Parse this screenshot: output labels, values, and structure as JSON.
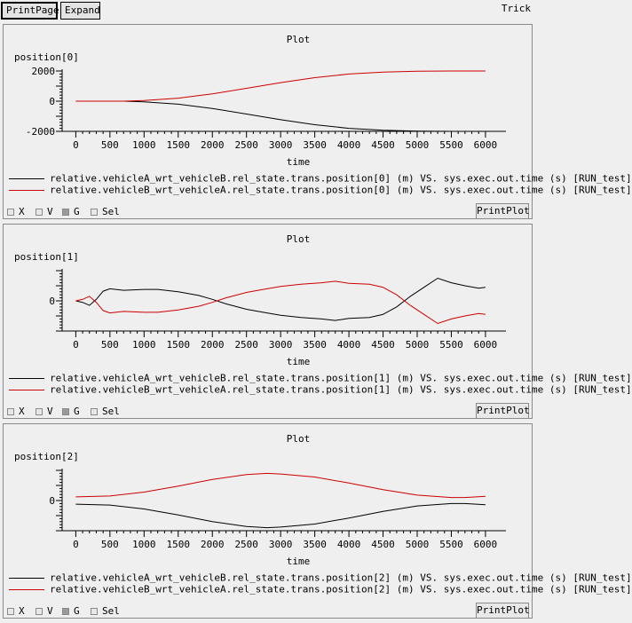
{
  "toolbar": {
    "printpage_label": "PrintPage",
    "expand_label": "Expand",
    "app_label": "Trick"
  },
  "controls": {
    "x_label": "X",
    "v_label": "V",
    "g_label": "G",
    "sel_label": "Sel",
    "printplot_label": "PrintPlot",
    "g_checked": true
  },
  "colors": {
    "series_a": "#000000",
    "series_b": "#cc0000"
  },
  "chart_data": [
    {
      "type": "line",
      "title": "Plot",
      "ylabel": "position[0]",
      "xlabel": "time",
      "xlim": [
        -200,
        6300
      ],
      "ylim": [
        -2000,
        2000
      ],
      "xticks": [
        0,
        500,
        1000,
        1500,
        2000,
        2500,
        3000,
        3500,
        4000,
        4500,
        5000,
        5500,
        6000
      ],
      "yticks": [
        2000,
        0,
        -2000
      ],
      "grid": false,
      "series": [
        {
          "name": "relative.vehicleA_wrt_vehicleB.rel_state.trans.position[0] (m) VS. sys.exec.out.time (s) [RUN_test]",
          "x": [
            0,
            500,
            700,
            1000,
            1500,
            2000,
            2500,
            3000,
            3500,
            4000,
            4500,
            5000,
            5500,
            6000
          ],
          "y": [
            0,
            0,
            0,
            -40,
            -200,
            -480,
            -850,
            -1230,
            -1560,
            -1800,
            -1930,
            -1980,
            -2000,
            -2000
          ]
        },
        {
          "name": "relative.vehicleB_wrt_vehicleA.rel_state.trans.position[0] (m) VS. sys.exec.out.time (s) [RUN_test]",
          "x": [
            0,
            500,
            700,
            1000,
            1500,
            2000,
            2500,
            3000,
            3500,
            4000,
            4500,
            5000,
            5500,
            6000
          ],
          "y": [
            0,
            0,
            0,
            40,
            200,
            480,
            850,
            1230,
            1560,
            1800,
            1930,
            1980,
            2000,
            2000
          ]
        }
      ]
    },
    {
      "type": "line",
      "title": "Plot",
      "ylabel": "position[1]",
      "xlabel": "time",
      "xlim": [
        -200,
        6300
      ],
      "ylim": [
        -1,
        1
      ],
      "xticks": [
        0,
        500,
        1000,
        1500,
        2000,
        2500,
        3000,
        3500,
        4000,
        4500,
        5000,
        5500,
        6000
      ],
      "yticks": [
        0
      ],
      "grid": false,
      "series": [
        {
          "name": "relative.vehicleA_wrt_vehicleB.rel_state.trans.position[1] (m) VS. sys.exec.out.time (s) [RUN_test]",
          "x": [
            0,
            100,
            200,
            300,
            400,
            500,
            700,
            1000,
            1200,
            1500,
            1800,
            2000,
            2200,
            2500,
            2800,
            3000,
            3300,
            3600,
            3800,
            4000,
            4300,
            4500,
            4700,
            4900,
            5100,
            5300,
            5500,
            5700,
            5900,
            6000
          ],
          "y": [
            0,
            -0.05,
            -0.15,
            0.05,
            0.32,
            0.4,
            0.35,
            0.38,
            0.38,
            0.3,
            0.18,
            0.05,
            -0.1,
            -0.28,
            -0.4,
            -0.48,
            -0.55,
            -0.6,
            -0.65,
            -0.58,
            -0.55,
            -0.45,
            -0.2,
            0.15,
            0.45,
            0.75,
            0.6,
            0.5,
            0.42,
            0.45
          ]
        },
        {
          "name": "relative.vehicleB_wrt_vehicleA.rel_state.trans.position[1] (m) VS. sys.exec.out.time (s) [RUN_test]",
          "x": [
            0,
            100,
            200,
            300,
            400,
            500,
            700,
            1000,
            1200,
            1500,
            1800,
            2000,
            2200,
            2500,
            2800,
            3000,
            3300,
            3600,
            3800,
            4000,
            4300,
            4500,
            4700,
            4900,
            5100,
            5300,
            5500,
            5700,
            5900,
            6000
          ],
          "y": [
            0,
            0.05,
            0.15,
            -0.05,
            -0.32,
            -0.4,
            -0.35,
            -0.38,
            -0.38,
            -0.3,
            -0.18,
            -0.05,
            0.1,
            0.28,
            0.4,
            0.48,
            0.55,
            0.6,
            0.65,
            0.58,
            0.55,
            0.45,
            0.2,
            -0.15,
            -0.45,
            -0.75,
            -0.6,
            -0.5,
            -0.42,
            -0.45
          ]
        }
      ]
    },
    {
      "type": "line",
      "title": "Plot",
      "ylabel": "position[2]",
      "xlabel": "time",
      "xlim": [
        -200,
        6300
      ],
      "ylim": [
        -1,
        1
      ],
      "xticks": [
        0,
        500,
        1000,
        1500,
        2000,
        2500,
        3000,
        3500,
        4000,
        4500,
        5000,
        5500,
        6000
      ],
      "yticks": [
        0
      ],
      "grid": false,
      "series": [
        {
          "name": "relative.vehicleA_wrt_vehicleB.rel_state.trans.position[2] (m) VS. sys.exec.out.time (s) [RUN_test]",
          "x": [
            0,
            500,
            1000,
            1500,
            2000,
            2500,
            2800,
            3000,
            3500,
            4000,
            4500,
            5000,
            5500,
            5700,
            6000
          ],
          "y": [
            -0.12,
            -0.15,
            -0.28,
            -0.48,
            -0.7,
            -0.86,
            -0.9,
            -0.88,
            -0.78,
            -0.58,
            -0.36,
            -0.18,
            -0.1,
            -0.1,
            -0.14
          ]
        },
        {
          "name": "relative.vehicleB_wrt_vehicleA.rel_state.trans.position[2] (m) VS. sys.exec.out.time (s) [RUN_test]",
          "x": [
            0,
            500,
            1000,
            1500,
            2000,
            2500,
            2800,
            3000,
            3500,
            4000,
            4500,
            5000,
            5500,
            5700,
            6000
          ],
          "y": [
            0.12,
            0.15,
            0.28,
            0.48,
            0.7,
            0.86,
            0.9,
            0.88,
            0.78,
            0.58,
            0.36,
            0.18,
            0.1,
            0.1,
            0.14
          ]
        }
      ]
    }
  ]
}
